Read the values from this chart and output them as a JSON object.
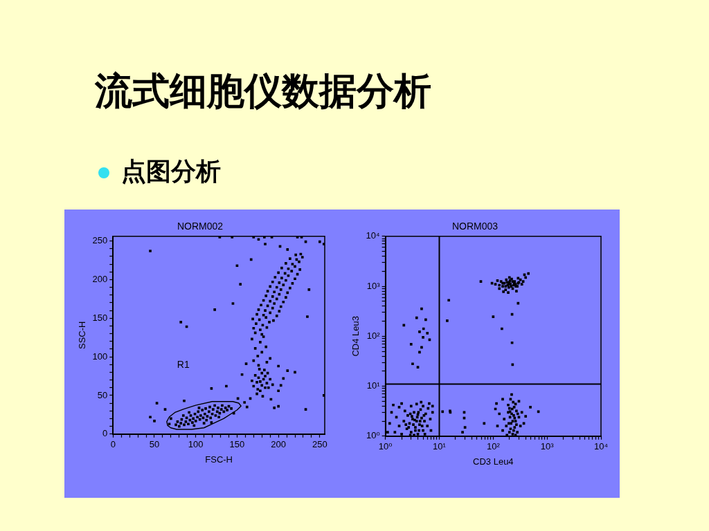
{
  "chart_data": [
    {
      "type": "other",
      "title": "流式细胞仪数据分析",
      "subtitle": "点图分析"
    },
    {
      "type": "scatter",
      "title": "NORM002",
      "xlabel": "FSC-H",
      "ylabel": "SSC-H",
      "marker": "square",
      "xlim": [
        0,
        256
      ],
      "ylim": [
        0,
        256
      ],
      "xticks": [
        0,
        {
          "value": 10,
          "label": null
        },
        {
          "value": 20,
          "label": null
        },
        {
          "value": 30,
          "label": null
        },
        {
          "value": 40,
          "label": null
        },
        50,
        {
          "value": 60,
          "label": null
        },
        {
          "value": 70,
          "label": null
        },
        {
          "value": 80,
          "label": null
        },
        {
          "value": 90,
          "label": null
        },
        100,
        {
          "value": 110,
          "label": null
        },
        {
          "value": 120,
          "label": null
        },
        {
          "value": 130,
          "label": null
        },
        {
          "value": 140,
          "label": null
        },
        150,
        {
          "value": 160,
          "label": null
        },
        {
          "value": 170,
          "label": null
        },
        {
          "value": 180,
          "label": null
        },
        {
          "value": 190,
          "label": null
        },
        200,
        {
          "value": 210,
          "label": null
        },
        {
          "value": 220,
          "label": null
        },
        {
          "value": 230,
          "label": null
        },
        {
          "value": 240,
          "label": null
        },
        250
      ],
      "yticks": [
        0,
        {
          "value": 10,
          "label": null
        },
        {
          "value": 20,
          "label": null
        },
        {
          "value": 30,
          "label": null
        },
        {
          "value": 40,
          "label": null
        },
        50,
        {
          "value": 60,
          "label": null
        },
        {
          "value": 70,
          "label": null
        },
        {
          "value": 80,
          "label": null
        },
        {
          "value": 90,
          "label": null
        },
        100,
        {
          "value": 110,
          "label": null
        },
        {
          "value": 120,
          "label": null
        },
        {
          "value": 130,
          "label": null
        },
        {
          "value": 140,
          "label": null
        },
        150,
        {
          "value": 160,
          "label": null
        },
        {
          "value": 170,
          "label": null
        },
        {
          "value": 180,
          "label": null
        },
        {
          "value": 190,
          "label": null
        },
        200,
        {
          "value": 210,
          "label": null
        },
        {
          "value": 220,
          "label": null
        },
        {
          "value": 230,
          "label": null
        },
        {
          "value": 240,
          "label": null
        },
        250
      ],
      "annotations": [
        "R1"
      ],
      "series": [
        {
          "color": "#000000",
          "x": [
            76,
            78,
            80,
            82,
            83,
            86,
            88,
            89,
            91,
            93,
            94,
            96,
            97,
            99,
            100,
            102,
            103,
            105,
            106,
            108,
            109,
            111,
            112,
            113,
            114,
            116,
            117,
            118,
            120,
            121,
            123,
            124,
            126,
            127,
            129,
            131,
            132,
            134,
            136,
            138,
            140,
            143,
            104,
            92,
            110,
            119,
            128,
            85,
            98,
            53,
            45,
            50,
            63,
            86,
            119,
            137,
            151,
            70,
            146,
            68,
            170,
            174,
            176,
            178,
            180,
            182,
            184,
            186,
            180,
            175,
            188,
            172,
            178,
            184,
            190,
            168,
            183,
            177,
            187,
            193,
            174,
            181,
            156,
            200,
            211,
            200,
            195,
            200,
            233,
            162,
            159,
            220,
            206,
            166,
            191,
            203,
            170,
            175,
            180,
            172,
            185,
            178,
            168,
            190,
            161,
            176,
            186,
            182,
            172,
            180,
            170,
            178,
            186,
            173,
            181,
            189,
            169,
            177,
            185,
            194,
            174,
            182,
            190,
            198,
            176,
            184,
            193,
            201,
            179,
            187,
            195,
            203,
            182,
            190,
            198,
            206,
            185,
            193,
            201,
            209,
            187,
            195,
            203,
            211,
            190,
            198,
            206,
            214,
            193,
            201,
            209,
            217,
            196,
            204,
            212,
            220,
            200,
            208,
            216,
            223,
            204,
            212,
            220,
            226,
            209,
            217,
            225,
            214,
            222,
            229,
            221,
            227,
            123,
            82,
            89,
            145,
            150,
            167,
            154,
            235,
            129,
            144,
            170,
            183,
            192,
            223,
            228,
            176,
            184,
            202,
            211,
            233,
            250,
            255,
            255,
            45,
            237
          ],
          "values": [
            12,
            16,
            10,
            14,
            19,
            12,
            16,
            21,
            13,
            18,
            24,
            15,
            20,
            26,
            17,
            22,
            29,
            19,
            24,
            31,
            21,
            26,
            33,
            18,
            23,
            29,
            35,
            21,
            26,
            32,
            37,
            24,
            29,
            34,
            27,
            32,
            37,
            29,
            34,
            31,
            36,
            33,
            34,
            28,
            14,
            15,
            22,
            24,
            11,
            40,
            22,
            17,
            32,
            43,
            59,
            62,
            46,
            20,
            27,
            13,
            62,
            67,
            73,
            68,
            63,
            71,
            75,
            66,
            79,
            58,
            60,
            76,
            56,
            60,
            71,
            69,
            83,
            84,
            79,
            64,
            52,
            49,
            77,
            88,
            82,
            56,
            34,
            36,
            32,
            35,
            41,
            80,
            72,
            46,
            45,
            63,
            95,
            101,
            106,
            111,
            113,
            119,
            123,
            98,
            91,
            89,
            93,
            126,
            131,
            129,
            137,
            135,
            138,
            143,
            141,
            145,
            149,
            148,
            151,
            147,
            155,
            154,
            157,
            153,
            161,
            160,
            163,
            159,
            167,
            166,
            169,
            165,
            173,
            172,
            175,
            171,
            179,
            178,
            181,
            177,
            185,
            184,
            187,
            183,
            191,
            190,
            193,
            189,
            197,
            196,
            199,
            195,
            203,
            202,
            205,
            201,
            209,
            208,
            211,
            207,
            215,
            214,
            217,
            213,
            221,
            220,
            223,
            227,
            226,
            229,
            232,
            233,
            161,
            145,
            139,
            169,
            218,
            226,
            194,
            152,
            255,
            255,
            255,
            255,
            255,
            255,
            255,
            252,
            246,
            243,
            239,
            249,
            249,
            246,
            50,
            237,
            187
          ]
        }
      ]
    },
    {
      "type": "scatter",
      "title": "NORM003",
      "xlabel": "CD3 Leu4",
      "ylabel": "CD4 Leu3",
      "marker": "square",
      "log": "xy",
      "xlim": [
        1,
        10000
      ],
      "ylim": [
        1,
        10000
      ],
      "xticks": [
        {
          "value": 1,
          "label": "10⁰"
        },
        {
          "value": 2,
          "label": null
        },
        {
          "value": 3,
          "label": null
        },
        {
          "value": 4,
          "label": null
        },
        {
          "value": 5,
          "label": null
        },
        {
          "value": 6,
          "label": null
        },
        {
          "value": 7,
          "label": null
        },
        {
          "value": 8,
          "label": null
        },
        {
          "value": 9,
          "label": null
        },
        {
          "value": 10,
          "label": "10¹"
        },
        {
          "value": 20,
          "label": null
        },
        {
          "value": 30,
          "label": null
        },
        {
          "value": 40,
          "label": null
        },
        {
          "value": 50,
          "label": null
        },
        {
          "value": 60,
          "label": null
        },
        {
          "value": 70,
          "label": null
        },
        {
          "value": 80,
          "label": null
        },
        {
          "value": 90,
          "label": null
        },
        {
          "value": 100,
          "label": "10²"
        },
        {
          "value": 200,
          "label": null
        },
        {
          "value": 300,
          "label": null
        },
        {
          "value": 400,
          "label": null
        },
        {
          "value": 500,
          "label": null
        },
        {
          "value": 600,
          "label": null
        },
        {
          "value": 700,
          "label": null
        },
        {
          "value": 800,
          "label": null
        },
        {
          "value": 900,
          "label": null
        },
        {
          "value": 1000,
          "label": "10³"
        },
        {
          "value": 2000,
          "label": null
        },
        {
          "value": 3000,
          "label": null
        },
        {
          "value": 4000,
          "label": null
        },
        {
          "value": 5000,
          "label": null
        },
        {
          "value": 6000,
          "label": null
        },
        {
          "value": 7000,
          "label": null
        },
        {
          "value": 8000,
          "label": null
        },
        {
          "value": 9000,
          "label": null
        },
        {
          "value": 10000,
          "label": "10⁴"
        }
      ],
      "yticks": [
        {
          "value": 1,
          "label": "10⁰"
        },
        {
          "value": 2,
          "label": null
        },
        {
          "value": 3,
          "label": null
        },
        {
          "value": 4,
          "label": null
        },
        {
          "value": 5,
          "label": null
        },
        {
          "value": 6,
          "label": null
        },
        {
          "value": 7,
          "label": null
        },
        {
          "value": 8,
          "label": null
        },
        {
          "value": 9,
          "label": null
        },
        {
          "value": 10,
          "label": "10¹"
        },
        {
          "value": 20,
          "label": null
        },
        {
          "value": 30,
          "label": null
        },
        {
          "value": 40,
          "label": null
        },
        {
          "value": 50,
          "label": null
        },
        {
          "value": 60,
          "label": null
        },
        {
          "value": 70,
          "label": null
        },
        {
          "value": 80,
          "label": null
        },
        {
          "value": 90,
          "label": null
        },
        {
          "value": 100,
          "label": "10²"
        },
        {
          "value": 200,
          "label": null
        },
        {
          "value": 300,
          "label": null
        },
        {
          "value": 400,
          "label": null
        },
        {
          "value": 500,
          "label": null
        },
        {
          "value": 600,
          "label": null
        },
        {
          "value": 700,
          "label": null
        },
        {
          "value": 800,
          "label": null
        },
        {
          "value": 900,
          "label": null
        },
        {
          "value": 1000,
          "label": "10³"
        },
        {
          "value": 2000,
          "label": null
        },
        {
          "value": 3000,
          "label": null
        },
        {
          "value": 4000,
          "label": null
        },
        {
          "value": 5000,
          "label": null
        },
        {
          "value": 6000,
          "label": null
        },
        {
          "value": 7000,
          "label": null
        },
        {
          "value": 8000,
          "label": null
        },
        {
          "value": 9000,
          "label": null
        },
        {
          "value": 10000,
          "label": "10⁴"
        }
      ],
      "ref_lines": [
        {
          "axis": "x",
          "value": 10
        },
        {
          "axis": "y",
          "value": 11
        }
      ],
      "series": [
        {
          "color": "#000000",
          "x": [
            1.5,
            1.8,
            2,
            2.2,
            2.5,
            2.6,
            2.8,
            3,
            3.2,
            3.4,
            3.6,
            3.8,
            4,
            4,
            4.3,
            4.5,
            4.7,
            5,
            5,
            5.3,
            5.6,
            6,
            6.2,
            6.8,
            2.3,
            1.6,
            3,
            3.8,
            4.6,
            1.3,
            7.5,
            1.2,
            2.9,
            4.2,
            3.4,
            5.4,
            7,
            1.4,
            1.8,
            6.5,
            7.5,
            1.1,
            2,
            11.5,
            15.8,
            16,
            29,
            29,
            27,
            30,
            68,
            150,
            160,
            175,
            190,
            200,
            205,
            215,
            225,
            230,
            240,
            250,
            260,
            270,
            280,
            300,
            320,
            190,
            235,
            210,
            260,
            130,
            120,
            340,
            370,
            180,
            260,
            220,
            245,
            200,
            285,
            690,
            490,
            110,
            400,
            150,
            300,
            115,
            110,
            130,
            140,
            150,
            160,
            170,
            175,
            185,
            195,
            200,
            210,
            220,
            230,
            240,
            250,
            260,
            280,
            300,
            320,
            340,
            360,
            400,
            120,
            155,
            190,
            270,
            95,
            380,
            450,
            200,
            130,
            290,
            100,
            145,
            224,
            229,
            224,
            290,
            59,
            15,
            14,
            4.7,
            3.8,
            2.2,
            5.6,
            5.1,
            4.3,
            5,
            6,
            3,
            4.7,
            4.3,
            3.2,
            4,
            6.6,
            2.7,
            3.3,
            3.9,
            4.4,
            3.1,
            3.6,
            4.8,
            2.4,
            4.1,
            3.5,
            5.2,
            2.9,
            210,
            230,
            250,
            195,
            220,
            270,
            240,
            205,
            180,
            215,
            245,
            195,
            230,
            265,
            170,
            205,
            290,
            150
          ],
          "values": [
            1.2,
            1.6,
            1.1,
            2,
            1.4,
            2.6,
            1.8,
            1.2,
            2.2,
            3,
            1.5,
            2,
            1.1,
            2.7,
            1.7,
            3.4,
            2.3,
            1.3,
            4,
            2,
            2.8,
            1.6,
            3.6,
            2.2,
            3.2,
            2.4,
            4,
            4.4,
            4.8,
            3,
            3,
            1.8,
            2.8,
            1.3,
            1.05,
            1.1,
            1.3,
            4.2,
            3.8,
            4.5,
            4,
            1.2,
            4.5,
            3.1,
            3.2,
            3,
            3,
            2.3,
            1.2,
            1.5,
            1.8,
            1.3,
            2.2,
            1.6,
            3,
            1.2,
            2.4,
            1.8,
            3.5,
            1.1,
            2.6,
            1.5,
            2,
            3.2,
            1.2,
            2.4,
            1.6,
            4.2,
            4.8,
            5.5,
            4.4,
            2.8,
            1.6,
            3,
            1.8,
            1.05,
            1.05,
            6.8,
            3.8,
            3.6,
            2.8,
            3.1,
            3.8,
            3.5,
            2.5,
            5.5,
            5,
            4.5,
            1100,
            900,
            1250,
            1000,
            1150,
            850,
            1350,
            1050,
            950,
            1200,
            1100,
            1400,
            900,
            1050,
            1250,
            1100,
            1000,
            1200,
            1350,
            1100,
            1250,
            1500,
            1300,
            780,
            750,
            800,
            1150,
            1700,
            1800,
            1500,
            1050,
            1450,
            245,
            141,
            74,
            27,
            275,
            457,
            1250,
            525,
            204,
            355,
            234,
            166,
            214,
            141,
            123,
            95,
            115,
            69,
            60,
            48,
            28,
            24,
            85,
            1.5,
            1.7,
            2.4,
            2,
            2.5,
            1.3,
            1.6,
            1.7,
            3,
            2.1,
            2.6,
            1.05,
            1.4,
            2,
            2.3,
            1.8,
            2.8,
            1.7,
            1.3,
            3.1,
            1200,
            1000,
            1150,
            1100,
            1250,
            1000,
            1000,
            1300,
            1150,
            1150
          ]
        }
      ]
    }
  ]
}
